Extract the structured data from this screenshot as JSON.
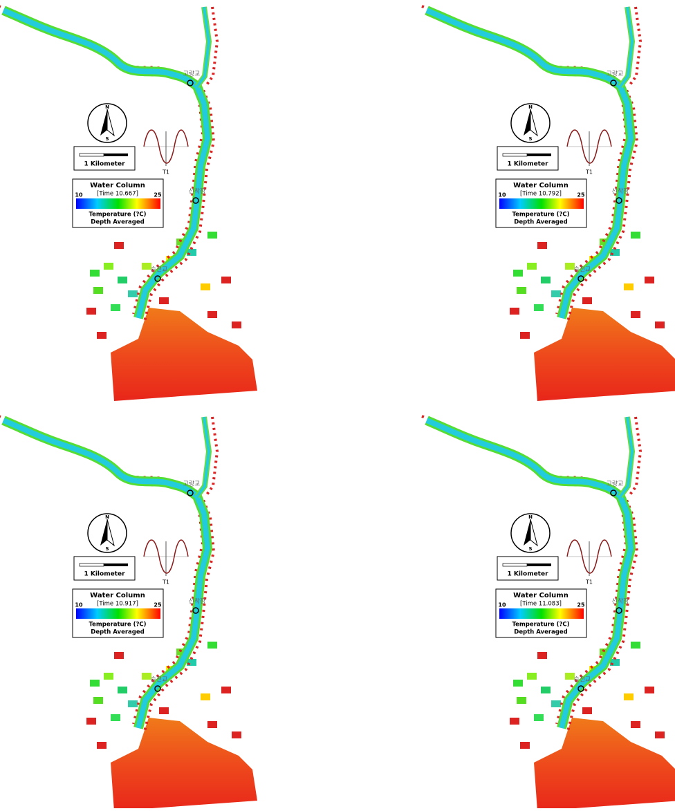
{
  "panels": [
    {
      "time": "[Time 10.667]"
    },
    {
      "time": "[Time 10.792]"
    },
    {
      "time": "[Time 10.917]"
    },
    {
      "time": "[Time 11.083]"
    }
  ],
  "legend": {
    "title": "Water Column",
    "min": "10",
    "max": "25",
    "quantity": "Temperature (?C)",
    "method": "Depth Averaged"
  },
  "scale": "1 Kilometer",
  "compass": {
    "north": "N",
    "south": "S"
  },
  "tide_label": "T1",
  "stations": [
    "고량교",
    "선착장",
    "승전교"
  ]
}
